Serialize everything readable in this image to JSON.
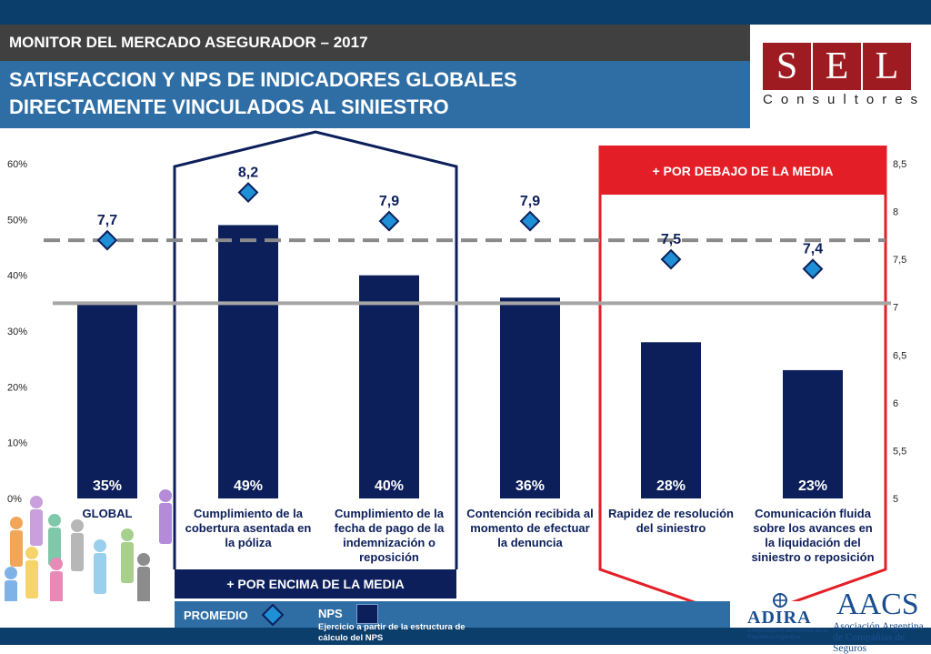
{
  "header": {
    "subtitle": "MONITOR DEL MERCADO ASEGURADOR – 2017",
    "title_line1": "SATISFACCION Y NPS DE INDICADORES GLOBALES",
    "title_line2": "DIRECTAMENTE VINCULADOS AL SINIESTRO"
  },
  "logo": {
    "letters": [
      "S",
      "E",
      "L"
    ],
    "subtitle": "Consultores"
  },
  "highlights": {
    "above_label": "+ POR ENCIMA DE LA MEDIA",
    "below_label": "+ POR DEBAJO DE LA MEDIA",
    "above_color": "#0c1f5a",
    "below_color": "#e41e26"
  },
  "legend": {
    "promedio": "PROMEDIO",
    "nps": "NPS",
    "note": "Ejercicio a partir de la estructura de cálculo del NPS"
  },
  "sponsors": {
    "adira_name": "ADIRA",
    "adira_sub": "Aseguradores del Interior de la República Argentina",
    "aacs_name": "AACS",
    "aacs_sub": "Asociación Argentina de Compañías de Seguros"
  },
  "colors": {
    "bar": "#0c1f5a",
    "marker": "#1f8fd6",
    "marker_border": "#0c1f5a",
    "avg_dashed": "#8a8a8a",
    "avg_solid": "#a6a6a6"
  },
  "chart_data": {
    "type": "bar",
    "categories": [
      "GLOBAL",
      "Cumplimiento de la cobertura asentada en la póliza",
      "Cumplimiento de la fecha de pago de la indemnización o reposición",
      "Contención recibida al momento de efectuar la denuncia",
      "Rapidez de resolución del siniestro",
      "Comunicación fluida sobre los avances en la liquidación del siniestro o reposición"
    ],
    "category_lines": [
      [
        "GLOBAL"
      ],
      [
        "Cumplimiento de la",
        "cobertura asentada en",
        "la póliza"
      ],
      [
        "Cumplimiento de la",
        "fecha de pago de la",
        "indemnización o",
        "reposición"
      ],
      [
        "Contención recibida al",
        "momento de efectuar",
        "la denuncia"
      ],
      [
        "Rapidez de resolución",
        "del siniestro"
      ],
      [
        "Comunicación fluida",
        "sobre los avances en",
        "la liquidación del",
        "siniestro o reposición"
      ]
    ],
    "series": [
      {
        "name": "NPS",
        "axis": "left",
        "values": [
          35,
          49,
          40,
          36,
          28,
          23
        ],
        "labels": [
          "35%",
          "49%",
          "40%",
          "36%",
          "28%",
          "23%"
        ]
      },
      {
        "name": "PROMEDIO",
        "axis": "right",
        "values": [
          7.7,
          8.2,
          7.9,
          7.9,
          7.5,
          7.4
        ],
        "labels": [
          "7,7",
          "8,2",
          "7,9",
          "7,9",
          "7,5",
          "7,4"
        ]
      }
    ],
    "reference_lines": [
      {
        "style": "dashed",
        "axis": "right",
        "value": 7.7
      },
      {
        "style": "solid",
        "axis": "left",
        "value": 35
      }
    ],
    "y_left": {
      "ylim": [
        0,
        60
      ],
      "ticks": [
        "0%",
        "10%",
        "20%",
        "30%",
        "40%",
        "50%",
        "60%"
      ]
    },
    "y_right": {
      "ylim": [
        5,
        8.5
      ],
      "ticks": [
        "5",
        "5,5",
        "6",
        "6,5",
        "7",
        "7,5",
        "8",
        "8,5"
      ]
    },
    "grid": false
  }
}
